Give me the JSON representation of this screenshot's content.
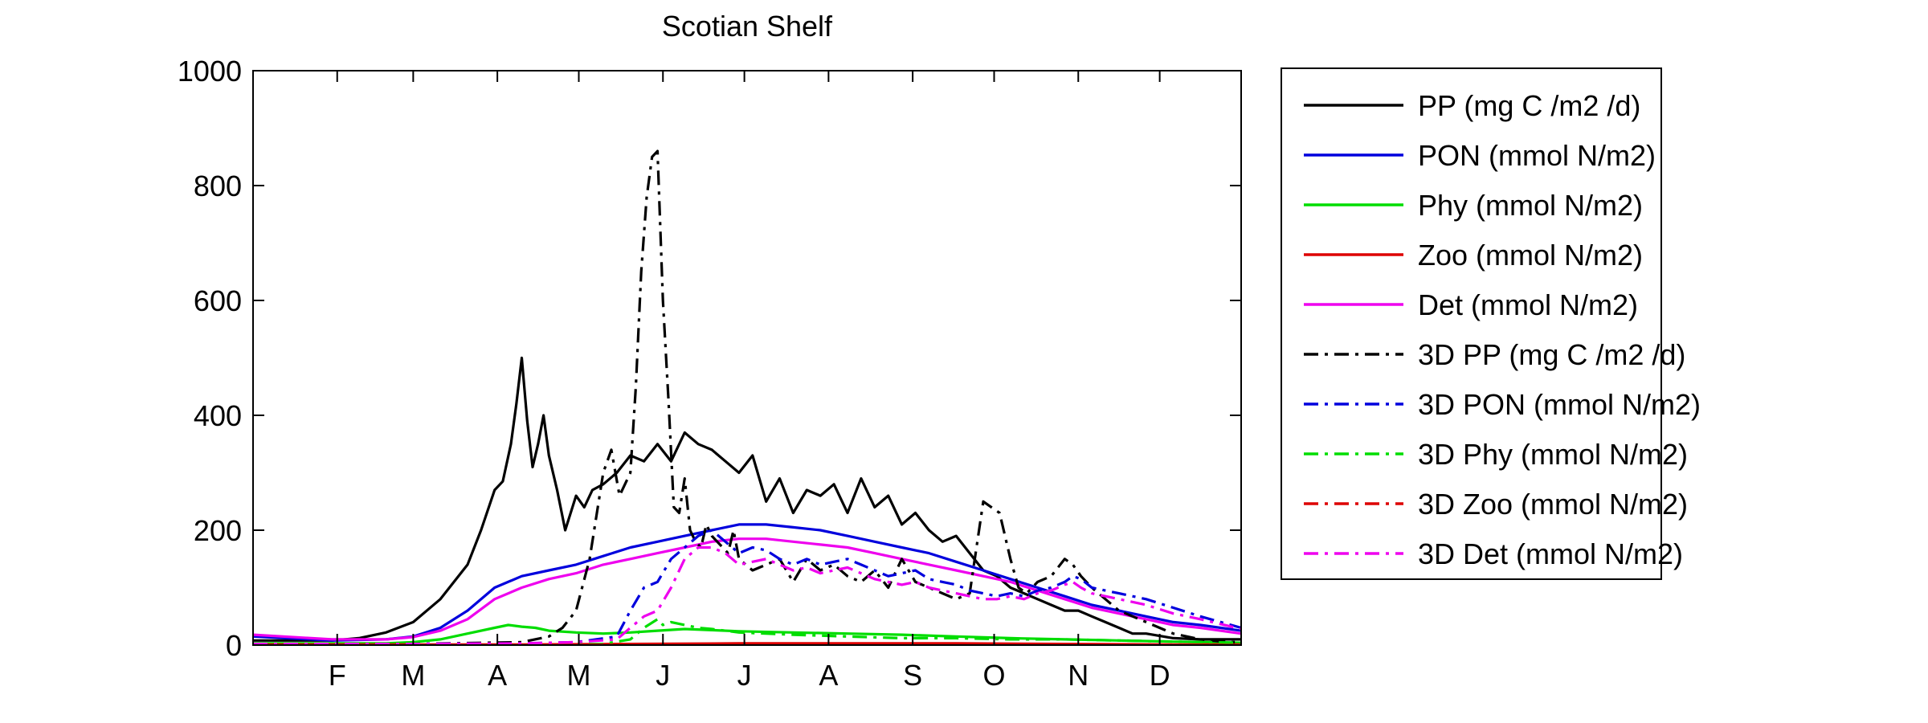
{
  "chart_data": {
    "type": "line",
    "title": "Scotian Shelf",
    "xlabel": "",
    "ylabel": "",
    "x_unit": "day of year",
    "xlim": [
      1,
      365
    ],
    "ylim": [
      0,
      1000
    ],
    "yticks": [
      0,
      200,
      400,
      600,
      800,
      1000
    ],
    "xticks": [
      {
        "label": "F",
        "day": 32
      },
      {
        "label": "M",
        "day": 60
      },
      {
        "label": "A",
        "day": 91
      },
      {
        "label": "M",
        "day": 121
      },
      {
        "label": "J",
        "day": 152
      },
      {
        "label": "J",
        "day": 182
      },
      {
        "label": "A",
        "day": 213
      },
      {
        "label": "S",
        "day": 244
      },
      {
        "label": "O",
        "day": 274
      },
      {
        "label": "N",
        "day": 305
      },
      {
        "label": "D",
        "day": 335
      }
    ],
    "grid": false,
    "legend_position": "outside-right",
    "series": [
      {
        "name": "PP (mg C /m2 /d)",
        "color": "#000000",
        "dash": "solid",
        "x": [
          1,
          30,
          40,
          50,
          60,
          70,
          80,
          85,
          90,
          93,
          96,
          98,
          100,
          102,
          104,
          106,
          108,
          110,
          113,
          116,
          120,
          123,
          126,
          130,
          135,
          140,
          145,
          150,
          155,
          160,
          165,
          170,
          175,
          180,
          185,
          190,
          195,
          200,
          205,
          210,
          215,
          220,
          225,
          230,
          235,
          240,
          245,
          250,
          255,
          260,
          265,
          270,
          275,
          280,
          285,
          290,
          295,
          300,
          305,
          310,
          315,
          320,
          325,
          330,
          340,
          350,
          360,
          365
        ],
        "y": [
          8,
          8,
          12,
          22,
          40,
          80,
          140,
          200,
          270,
          285,
          350,
          420,
          500,
          390,
          310,
          350,
          400,
          330,
          270,
          200,
          260,
          240,
          270,
          280,
          300,
          330,
          320,
          350,
          320,
          370,
          350,
          340,
          320,
          300,
          330,
          250,
          290,
          230,
          270,
          260,
          280,
          230,
          290,
          240,
          260,
          210,
          230,
          200,
          180,
          190,
          160,
          130,
          120,
          100,
          90,
          80,
          70,
          60,
          60,
          50,
          40,
          30,
          20,
          20,
          12,
          10,
          10,
          10
        ]
      },
      {
        "name": "PON (mmol N/m2)",
        "color": "#0000dd",
        "dash": "solid",
        "x": [
          1,
          30,
          50,
          60,
          70,
          80,
          90,
          100,
          110,
          120,
          130,
          140,
          150,
          160,
          170,
          180,
          190,
          200,
          210,
          220,
          230,
          240,
          250,
          260,
          270,
          280,
          290,
          300,
          310,
          320,
          330,
          340,
          350,
          365
        ],
        "y": [
          15,
          8,
          10,
          15,
          30,
          60,
          100,
          120,
          130,
          140,
          155,
          170,
          180,
          190,
          200,
          210,
          210,
          205,
          200,
          190,
          180,
          170,
          160,
          145,
          130,
          115,
          100,
          85,
          70,
          60,
          50,
          40,
          35,
          25
        ]
      },
      {
        "name": "Phy (mmol N/m2)",
        "color": "#00dd00",
        "dash": "solid",
        "x": [
          1,
          30,
          50,
          60,
          70,
          80,
          90,
          95,
          100,
          105,
          110,
          120,
          130,
          140,
          150,
          160,
          170,
          180,
          200,
          220,
          240,
          260,
          280,
          300,
          320,
          340,
          365
        ],
        "y": [
          3,
          3,
          3,
          5,
          10,
          20,
          30,
          35,
          32,
          30,
          25,
          22,
          20,
          22,
          25,
          28,
          26,
          24,
          22,
          20,
          18,
          15,
          12,
          10,
          8,
          6,
          4
        ]
      },
      {
        "name": "Zoo (mmol N/m2)",
        "color": "#dd0000",
        "dash": "solid",
        "x": [
          1,
          60,
          100,
          140,
          180,
          220,
          260,
          300,
          340,
          365
        ],
        "y": [
          1,
          1,
          1,
          2,
          3,
          3,
          3,
          2,
          1,
          1
        ]
      },
      {
        "name": "Det (mmol N/m2)",
        "color": "#ee00ee",
        "dash": "solid",
        "x": [
          1,
          30,
          50,
          60,
          70,
          80,
          90,
          100,
          110,
          120,
          130,
          140,
          150,
          160,
          170,
          180,
          190,
          200,
          210,
          220,
          230,
          240,
          250,
          260,
          270,
          280,
          290,
          300,
          310,
          320,
          330,
          340,
          350,
          365
        ],
        "y": [
          18,
          10,
          10,
          14,
          25,
          45,
          80,
          100,
          115,
          125,
          140,
          150,
          160,
          170,
          180,
          185,
          185,
          180,
          175,
          170,
          160,
          150,
          140,
          130,
          120,
          110,
          95,
          80,
          65,
          55,
          45,
          35,
          30,
          20
        ]
      },
      {
        "name": "3D PP (mg C /m2 /d)",
        "color": "#000000",
        "dash": "dashdot",
        "x": [
          1,
          60,
          100,
          110,
          115,
          120,
          125,
          130,
          133,
          136,
          140,
          142,
          144,
          146,
          148,
          150,
          152,
          154,
          156,
          158,
          160,
          162,
          164,
          166,
          168,
          170,
          172,
          174,
          176,
          178,
          180,
          185,
          190,
          195,
          200,
          205,
          210,
          215,
          220,
          225,
          230,
          235,
          240,
          245,
          250,
          255,
          260,
          265,
          270,
          273,
          276,
          280,
          283,
          286,
          290,
          295,
          300,
          303,
          306,
          310,
          315,
          320,
          330,
          340,
          350,
          360,
          365
        ],
        "y": [
          2,
          2,
          5,
          15,
          30,
          60,
          150,
          300,
          340,
          260,
          300,
          450,
          650,
          780,
          850,
          860,
          600,
          430,
          240,
          230,
          290,
          200,
          180,
          170,
          210,
          190,
          180,
          170,
          160,
          200,
          150,
          130,
          140,
          150,
          110,
          150,
          130,
          140,
          120,
          110,
          130,
          100,
          150,
          110,
          100,
          90,
          80,
          90,
          250,
          240,
          230,
          150,
          100,
          90,
          110,
          120,
          150,
          140,
          120,
          100,
          80,
          60,
          40,
          20,
          10,
          5,
          5
        ]
      },
      {
        "name": "3D PON (mmol N/m2)",
        "color": "#0000dd",
        "dash": "dashdot",
        "x": [
          1,
          60,
          100,
          120,
          135,
          140,
          145,
          150,
          155,
          160,
          165,
          170,
          175,
          180,
          185,
          190,
          195,
          200,
          205,
          210,
          215,
          220,
          225,
          230,
          235,
          240,
          245,
          250,
          255,
          260,
          265,
          270,
          275,
          280,
          285,
          290,
          295,
          300,
          303,
          306,
          310,
          315,
          320,
          330,
          340,
          350,
          365
        ],
        "y": [
          2,
          2,
          3,
          5,
          15,
          60,
          100,
          110,
          150,
          170,
          190,
          200,
          180,
          160,
          170,
          165,
          150,
          140,
          150,
          140,
          145,
          150,
          140,
          130,
          120,
          125,
          130,
          115,
          110,
          105,
          95,
          90,
          85,
          90,
          85,
          95,
          100,
          110,
          120,
          115,
          100,
          95,
          90,
          80,
          65,
          50,
          30
        ]
      },
      {
        "name": "3D Phy (mmol N/m2)",
        "color": "#00dd00",
        "dash": "dashdot",
        "x": [
          1,
          100,
          130,
          140,
          145,
          150,
          152,
          155,
          160,
          165,
          170,
          180,
          200,
          220,
          240,
          260,
          280,
          300,
          320,
          340,
          365
        ],
        "y": [
          1,
          1,
          2,
          10,
          30,
          45,
          35,
          40,
          35,
          30,
          28,
          22,
          18,
          15,
          12,
          12,
          10,
          10,
          8,
          6,
          4
        ]
      },
      {
        "name": "3D Zoo (mmol N/m2)",
        "color": "#dd0000",
        "dash": "dashdot",
        "x": [
          1,
          100,
          150,
          200,
          250,
          300,
          365
        ],
        "y": [
          0,
          0,
          1,
          2,
          2,
          1,
          0
        ]
      },
      {
        "name": "3D Det (mmol N/m2)",
        "color": "#ee00ee",
        "dash": "dashdot",
        "x": [
          1,
          60,
          100,
          120,
          135,
          140,
          145,
          150,
          155,
          160,
          165,
          170,
          175,
          180,
          185,
          190,
          195,
          200,
          205,
          210,
          215,
          220,
          225,
          230,
          235,
          240,
          245,
          250,
          255,
          260,
          265,
          270,
          275,
          280,
          285,
          290,
          295,
          300,
          303,
          306,
          310,
          315,
          320,
          330,
          340,
          350,
          365
        ],
        "y": [
          2,
          2,
          3,
          5,
          10,
          30,
          50,
          60,
          100,
          150,
          170,
          170,
          160,
          140,
          145,
          150,
          140,
          130,
          135,
          125,
          130,
          135,
          125,
          115,
          110,
          105,
          110,
          100,
          95,
          90,
          85,
          80,
          80,
          85,
          80,
          90,
          95,
          105,
          110,
          100,
          90,
          85,
          80,
          70,
          55,
          45,
          28
        ]
      }
    ]
  }
}
